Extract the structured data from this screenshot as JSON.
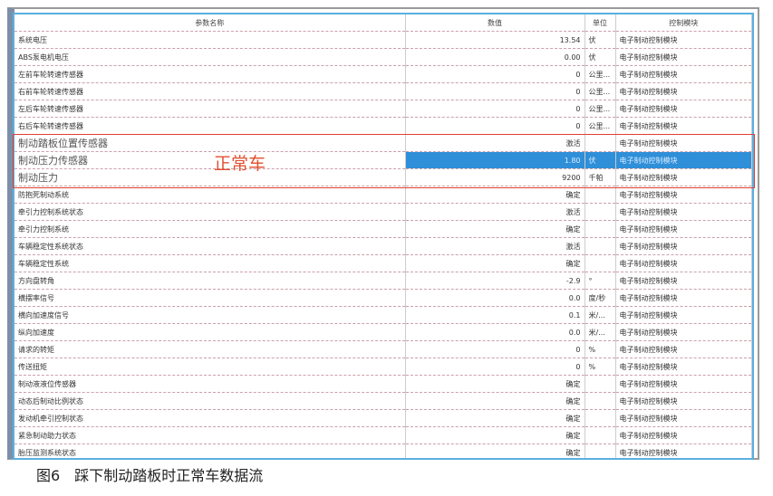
{
  "table": {
    "headers": [
      "参数名称",
      "数值",
      "单位",
      "控制模块"
    ],
    "rows": [
      {
        "name": "系统电压",
        "value": "13.54",
        "unit": "伏",
        "module": "电子制动控制模块"
      },
      {
        "name": "ABS泵电机电压",
        "value": "0.00",
        "unit": "伏",
        "module": "电子制动控制模块"
      },
      {
        "name": "左前车轮转速传感器",
        "value": "0",
        "unit": "公里...",
        "module": "电子制动控制模块"
      },
      {
        "name": "右前车轮转速传感器",
        "value": "0",
        "unit": "公里...",
        "module": "电子制动控制模块"
      },
      {
        "name": "左后车轮转速传感器",
        "value": "0",
        "unit": "公里...",
        "module": "电子制动控制模块"
      },
      {
        "name": "右后车轮转速传感器",
        "value": "0",
        "unit": "公里...",
        "module": "电子制动控制模块"
      },
      {
        "name": "制动踏板位置传感器",
        "value": "激活",
        "unit": "",
        "module": "电子制动控制模块"
      },
      {
        "name": "制动压力传感器",
        "value": "1.80",
        "unit": "伏",
        "module": "电子制动控制模块"
      },
      {
        "name": "制动压力",
        "value": "9200",
        "unit": "千帕",
        "module": "电子制动控制模块"
      },
      {
        "name": "防抱死制动系统",
        "value": "确定",
        "unit": "",
        "module": "电子制动控制模块"
      },
      {
        "name": "牵引力控制系统状态",
        "value": "激活",
        "unit": "",
        "module": "电子制动控制模块"
      },
      {
        "name": "牵引力控制系统",
        "value": "确定",
        "unit": "",
        "module": "电子制动控制模块"
      },
      {
        "name": "车辆稳定性系统状态",
        "value": "激活",
        "unit": "",
        "module": "电子制动控制模块"
      },
      {
        "name": "车辆稳定性系统",
        "value": "确定",
        "unit": "",
        "module": "电子制动控制模块"
      },
      {
        "name": "方向盘转角",
        "value": "-2.9",
        "unit": "°",
        "module": "电子制动控制模块"
      },
      {
        "name": "横摆率信号",
        "value": "0.0",
        "unit": "度/秒",
        "module": "电子制动控制模块"
      },
      {
        "name": "横向加速度信号",
        "value": "0.1",
        "unit": "米/...",
        "module": "电子制动控制模块"
      },
      {
        "name": "纵向加速度",
        "value": "0.0",
        "unit": "米/...",
        "module": "电子制动控制模块"
      },
      {
        "name": "请求的转矩",
        "value": "0",
        "unit": "%",
        "module": "电子制动控制模块"
      },
      {
        "name": "传送扭矩",
        "value": "0",
        "unit": "%",
        "module": "电子制动控制模块"
      },
      {
        "name": "制动液液位传感器",
        "value": "确定",
        "unit": "",
        "module": "电子制动控制模块"
      },
      {
        "name": "动态后制动比例状态",
        "value": "确定",
        "unit": "",
        "module": "电子制动控制模块"
      },
      {
        "name": "发动机牵引控制状态",
        "value": "确定",
        "unit": "",
        "module": "电子制动控制模块"
      },
      {
        "name": "紧急制动助力状态",
        "value": "确定",
        "unit": "",
        "module": "电子制动控制模块"
      },
      {
        "name": "胎压监测系统状态",
        "value": "确定",
        "unit": "",
        "module": "电子制动控制模块"
      }
    ],
    "selected_row": 7,
    "highlighted_rows": [
      6,
      7,
      8
    ]
  },
  "annotation": "正常车",
  "caption": {
    "number": "图6",
    "text": "踩下制动踏板时正常车数据流"
  },
  "colors": {
    "selection": "#2f8fd8",
    "annotation": "#e05030"
  }
}
